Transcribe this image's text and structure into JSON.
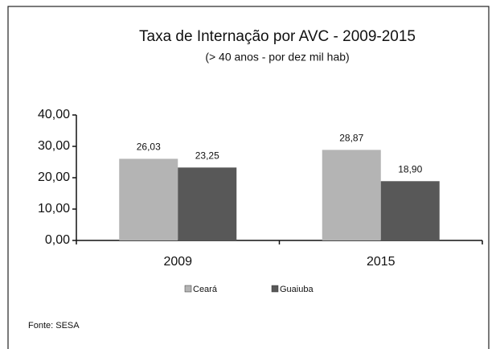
{
  "chart_data": {
    "type": "bar",
    "title": "Taxa de Internação por AVC - 2009-2015",
    "subtitle": "(> 40 anos - por dez mil hab)",
    "categories": [
      "2009",
      "2015"
    ],
    "series": [
      {
        "name": "Ceará",
        "color": "#b4b4b4",
        "values": [
          26.03,
          28.87
        ],
        "value_labels": [
          "26,03",
          "28,87"
        ]
      },
      {
        "name": "Guaiuba",
        "color": "#585858",
        "values": [
          23.25,
          18.9
        ],
        "value_labels": [
          "23,25",
          "18,90"
        ]
      }
    ],
    "ylim": [
      0,
      40
    ],
    "yticks": [
      {
        "value": 0,
        "label": "0,00"
      },
      {
        "value": 10,
        "label": "10,00"
      },
      {
        "value": 20,
        "label": "20,00"
      },
      {
        "value": 30,
        "label": "30,00"
      },
      {
        "value": 40,
        "label": "40,00"
      }
    ],
    "legend": "bottom",
    "source": "Fonte: SESA"
  }
}
